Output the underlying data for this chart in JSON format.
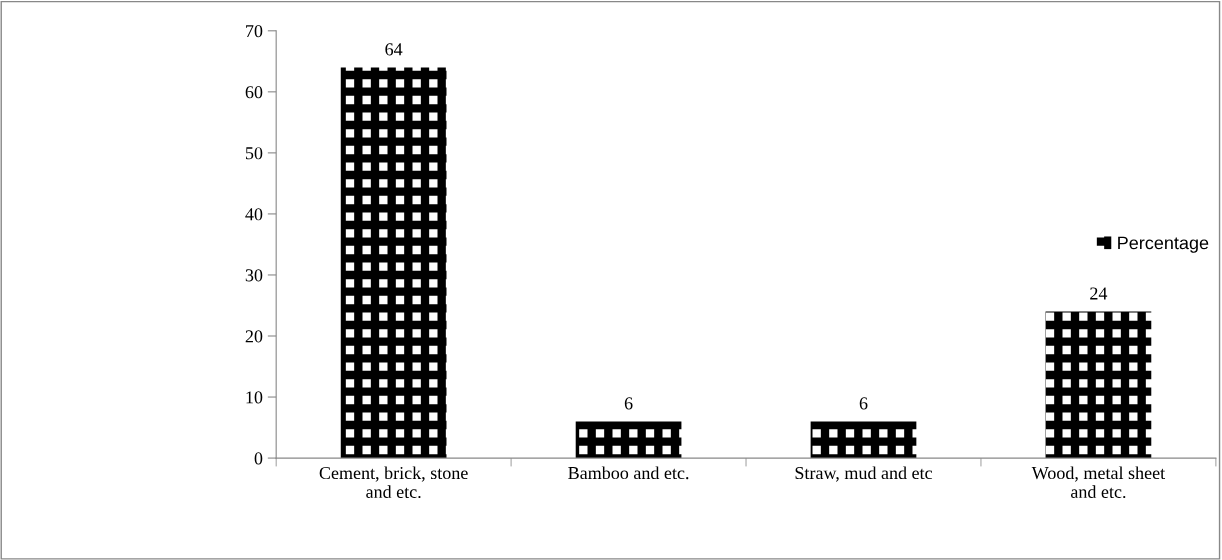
{
  "chart_data": {
    "type": "bar",
    "categories": [
      "Cement, brick, stone\nand etc.",
      "Bamboo and etc.",
      "Straw, mud and etc",
      "Wood, metal sheet\nand etc."
    ],
    "series": [
      {
        "name": "Percentage",
        "color": "#000000",
        "values": [
          64,
          6,
          6,
          24
        ]
      }
    ],
    "ylim": [
      0,
      70
    ],
    "yticks": [
      0,
      10,
      20,
      30,
      40,
      50,
      60,
      70
    ],
    "data_labels": true,
    "legend": "right",
    "grid": false
  }
}
